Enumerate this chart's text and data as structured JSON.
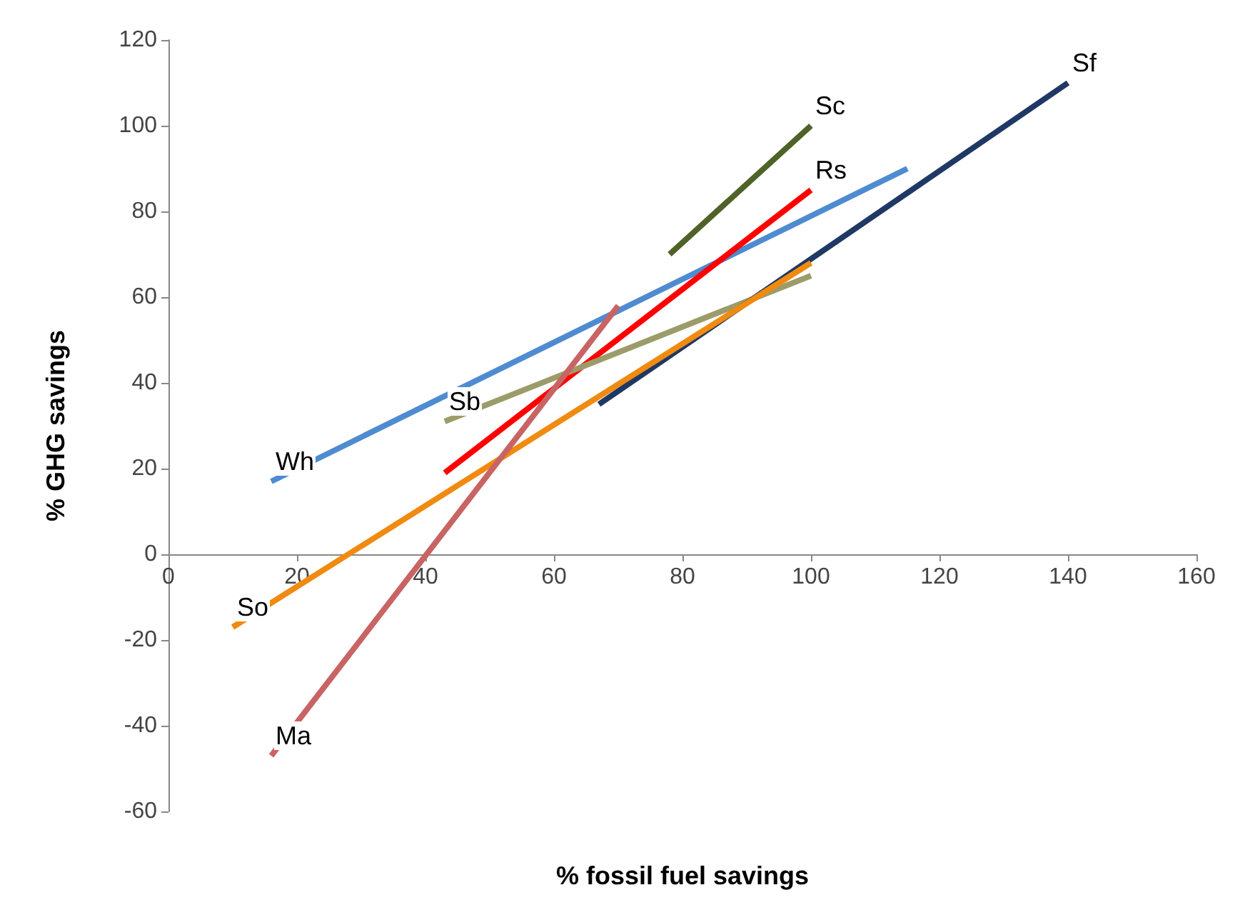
{
  "chart_data": {
    "type": "line",
    "xlabel": "% fossil fuel savings",
    "ylabel": "% GHG savings",
    "xlim": [
      0,
      160
    ],
    "xticks": [
      0,
      20,
      40,
      60,
      80,
      100,
      120,
      140,
      160
    ],
    "ylim": [
      -60,
      120
    ],
    "yticks": [
      -60,
      -40,
      -20,
      0,
      20,
      40,
      60,
      80,
      100,
      120
    ],
    "grid": false,
    "legend": false,
    "marker": "none",
    "line_style": "solid",
    "series": [
      {
        "name": "Wh",
        "color": "#4f8bd0",
        "x": [
          115,
          16
        ],
        "values": [
          90,
          17
        ]
      },
      {
        "name": "Sc",
        "color": "#4f6228",
        "x": [
          78,
          100
        ],
        "values": [
          70,
          100
        ]
      },
      {
        "name": "Rs",
        "color": "#ff0000",
        "x": [
          43,
          100
        ],
        "values": [
          19,
          85
        ]
      },
      {
        "name": "Sb",
        "color": "#9c9c6a",
        "x": [
          100,
          43
        ],
        "values": [
          65,
          31
        ]
      },
      {
        "name": "Sf",
        "color": "#1f3864",
        "x": [
          67,
          140
        ],
        "values": [
          35,
          110
        ]
      },
      {
        "name": "So",
        "color": "#f08a10",
        "x": [
          100,
          10
        ],
        "values": [
          68,
          -17
        ]
      },
      {
        "name": "Ma",
        "color": "#c86464",
        "x": [
          70,
          16
        ],
        "values": [
          58,
          -47
        ]
      }
    ]
  }
}
